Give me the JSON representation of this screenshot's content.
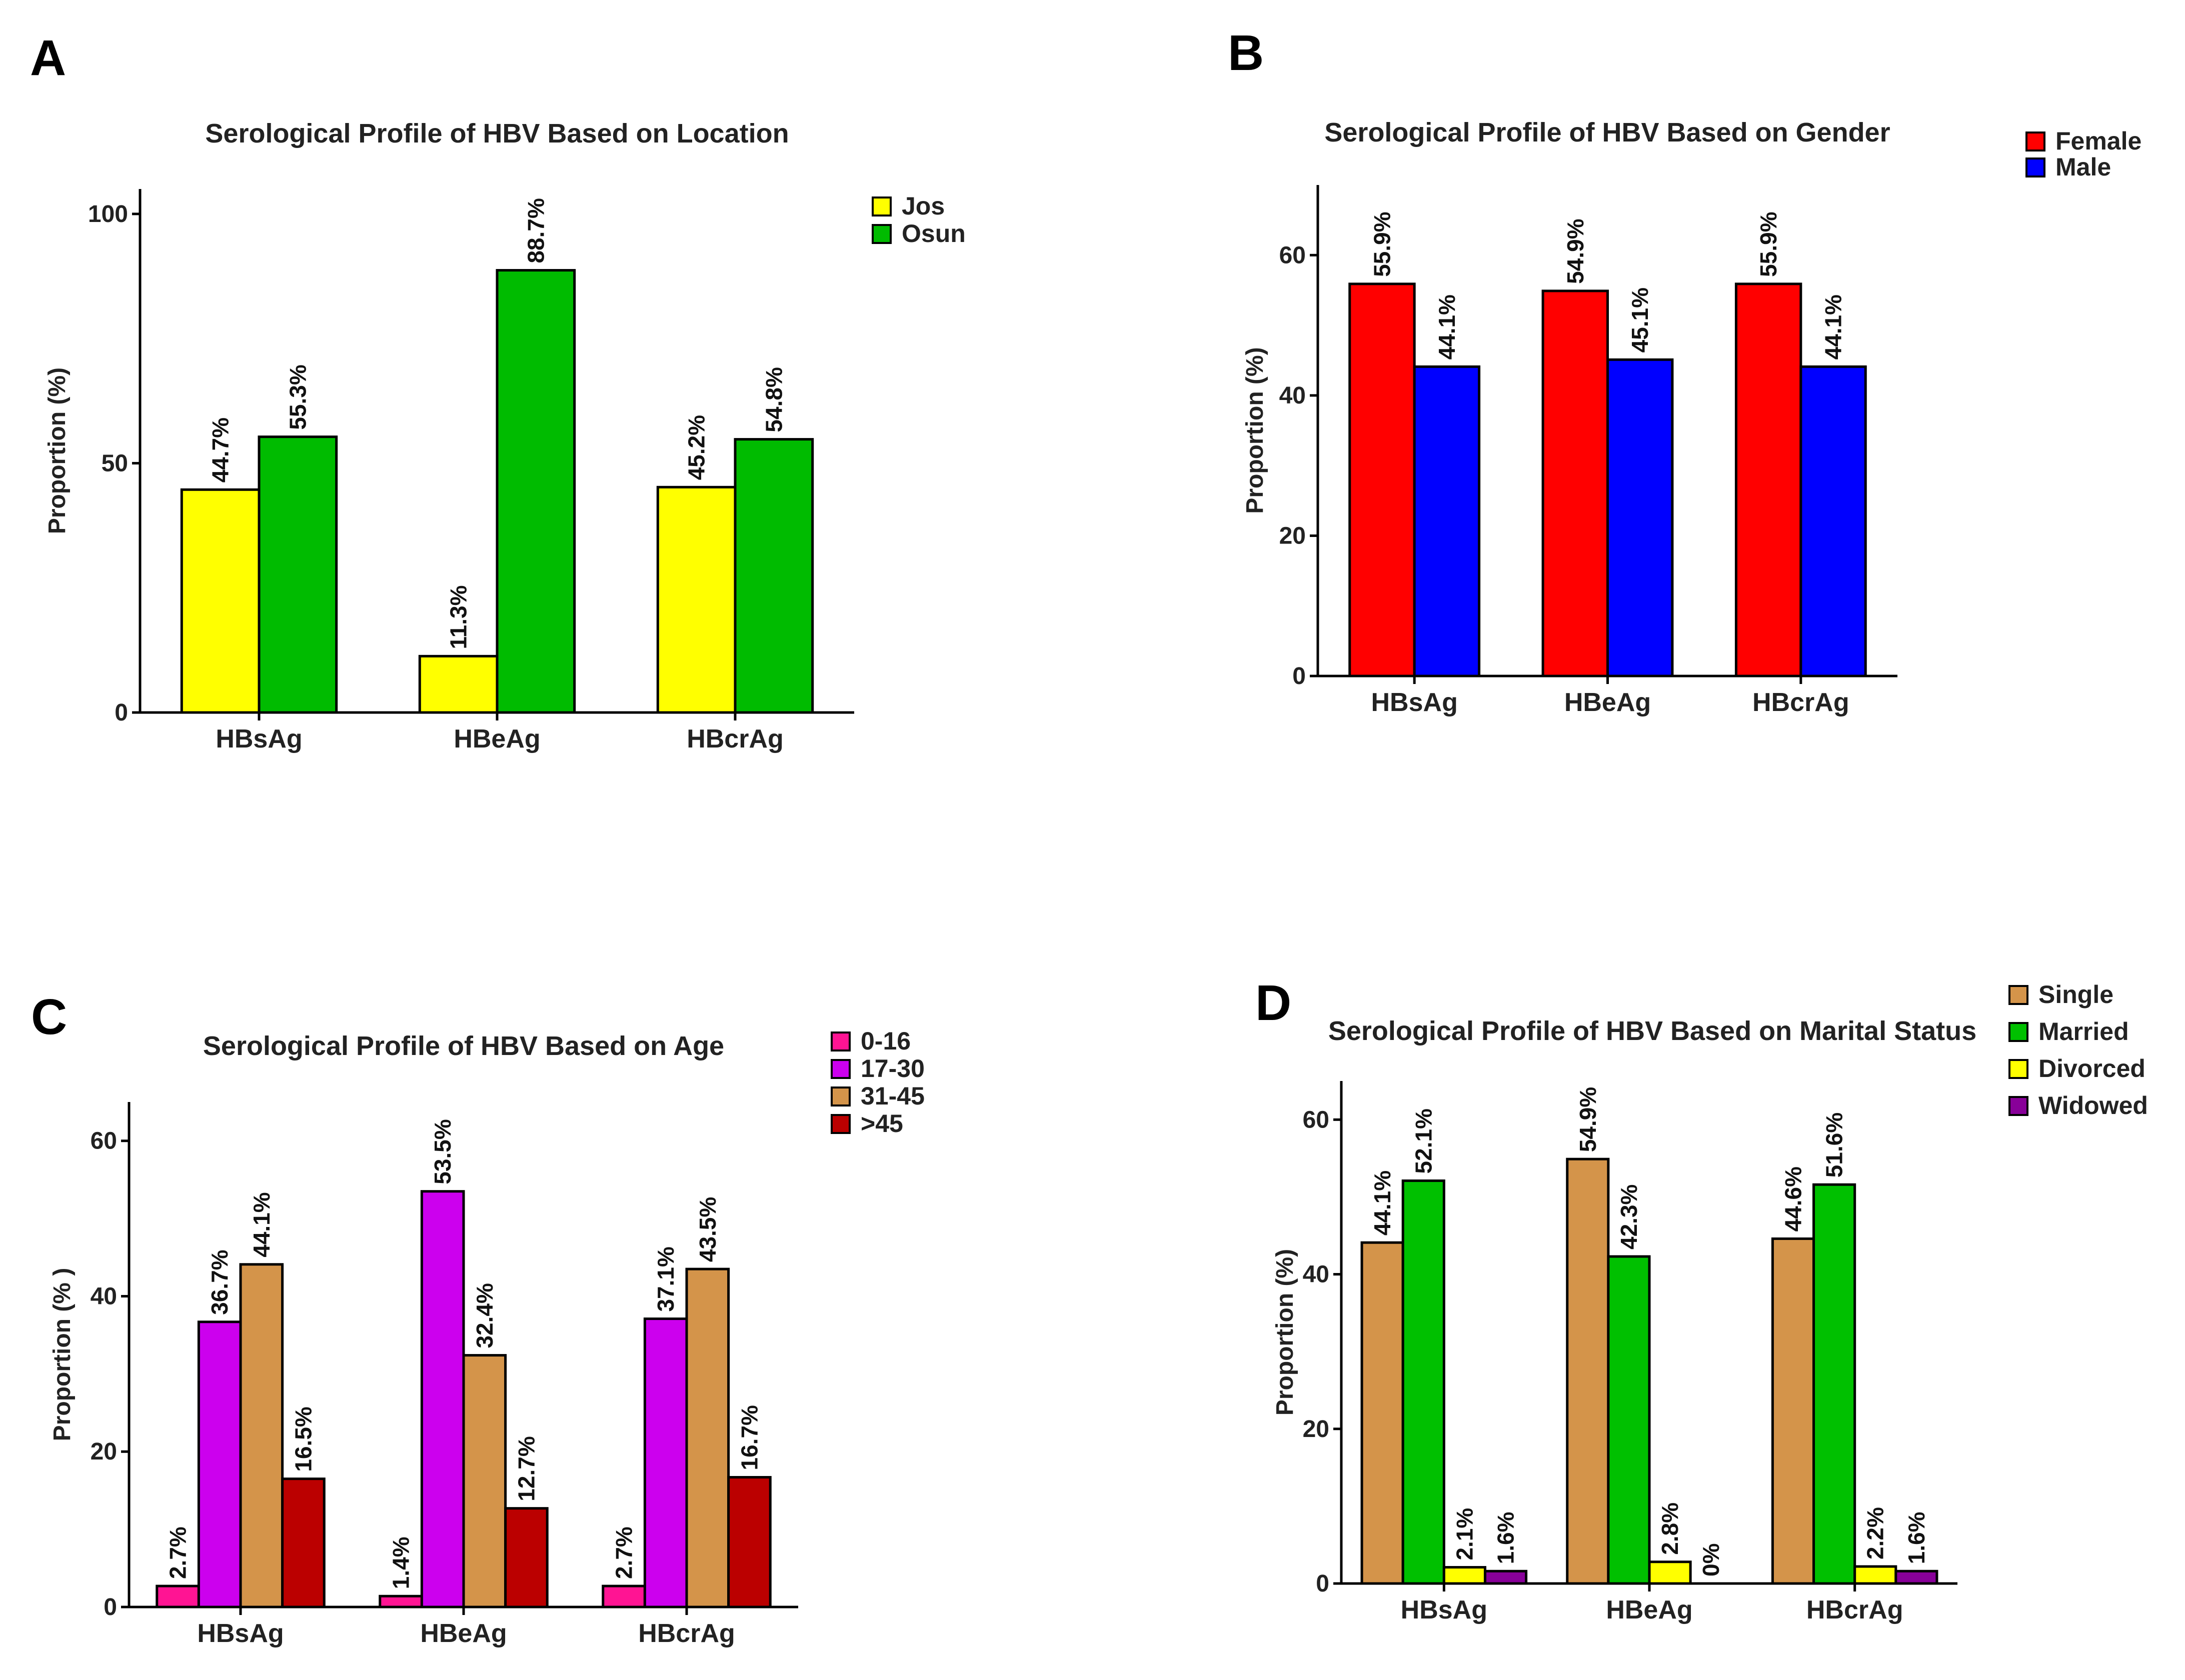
{
  "chart_data": [
    {
      "panel": "A",
      "type": "bar",
      "title": "Serological Profile of HBV Based on Location",
      "xlabel": "",
      "ylabel": "Proportion (%)",
      "ylim": [
        0,
        105
      ],
      "yticks": [
        0,
        50,
        100
      ],
      "categories": [
        "HBsAg",
        "HBeAg",
        "HBcrAg"
      ],
      "legend_position": "top-right",
      "series": [
        {
          "name": "Jos",
          "color": "#FFFF00",
          "values": [
            44.7,
            11.3,
            45.2
          ],
          "labels": [
            "44.7%",
            "11.3%",
            "45.2%"
          ]
        },
        {
          "name": "Osun",
          "color": "#00BB00",
          "values": [
            55.3,
            88.7,
            54.8
          ],
          "labels": [
            "55.3%",
            "88.7%",
            "54.8%"
          ]
        }
      ]
    },
    {
      "panel": "B",
      "type": "bar",
      "title": "Serological Profile of HBV Based on Gender",
      "xlabel": "",
      "ylabel": "Proportion (%)",
      "ylim": [
        0,
        70
      ],
      "yticks": [
        0,
        20,
        40,
        60
      ],
      "categories": [
        "HBsAg",
        "HBeAg",
        "HBcrAg"
      ],
      "legend_position": "top-right",
      "series": [
        {
          "name": "Female",
          "color": "#FF0000",
          "values": [
            55.9,
            54.9,
            55.9
          ],
          "labels": [
            "55.9%",
            "54.9%",
            "55.9%"
          ]
        },
        {
          "name": "Male",
          "color": "#0000FF",
          "values": [
            44.1,
            45.1,
            44.1
          ],
          "labels": [
            "44.1%",
            "45.1%",
            "44.1%"
          ]
        }
      ]
    },
    {
      "panel": "C",
      "type": "bar",
      "title": "Serological Profile of HBV Based on Age",
      "xlabel": "",
      "ylabel": "Proportion (% )",
      "ylim": [
        0,
        65
      ],
      "yticks": [
        0,
        20,
        40,
        60
      ],
      "categories": [
        "HBsAg",
        "HBeAg",
        "HBcrAg"
      ],
      "legend_position": "top-right",
      "series": [
        {
          "name": "0-16",
          "color": "#FF1493",
          "values": [
            2.7,
            1.4,
            2.7
          ],
          "labels": [
            "2.7%",
            "1.4%",
            "2.7%"
          ]
        },
        {
          "name": "17-30",
          "color": "#CC00EE",
          "values": [
            36.7,
            53.5,
            37.1
          ],
          "labels": [
            "36.7%",
            "53.5%",
            "37.1%"
          ]
        },
        {
          "name": "31-45",
          "color": "#D4944A",
          "values": [
            44.1,
            32.4,
            43.5
          ],
          "labels": [
            "44.1%",
            "32.4%",
            "43.5%"
          ]
        },
        {
          "name": ">45",
          "color": "#BB0000",
          "values": [
            16.5,
            12.7,
            16.7
          ],
          "labels": [
            "16.5%",
            "12.7%",
            "16.7%"
          ]
        }
      ]
    },
    {
      "panel": "D",
      "type": "bar",
      "title": "Serological Profile of HBV Based on Marital Status",
      "xlabel": "",
      "ylabel": "Proportion (%)",
      "ylim": [
        0,
        65
      ],
      "yticks": [
        0,
        20,
        40,
        60
      ],
      "categories": [
        "HBsAg",
        "HBeAg",
        "HBcrAg"
      ],
      "legend_position": "top-right",
      "series": [
        {
          "name": "Single",
          "color": "#D4944A",
          "values": [
            44.1,
            54.9,
            44.6
          ],
          "labels": [
            "44.1%",
            "54.9%",
            "44.6%"
          ]
        },
        {
          "name": "Married",
          "color": "#00C000",
          "values": [
            52.1,
            42.3,
            51.6
          ],
          "labels": [
            "52.1%",
            "42.3%",
            "51.6%"
          ]
        },
        {
          "name": "Divorced",
          "color": "#FFFF00",
          "values": [
            2.1,
            2.8,
            2.2
          ],
          "labels": [
            "2.1%",
            "2.8%",
            "2.2%"
          ]
        },
        {
          "name": "Widowed",
          "color": "#880099",
          "values": [
            1.6,
            0,
            1.6
          ],
          "labels": [
            "1.6%",
            "0%",
            "1.6%"
          ]
        }
      ]
    }
  ]
}
